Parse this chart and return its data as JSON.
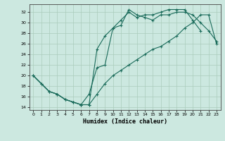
{
  "xlabel": "Humidex (Indice chaleur)",
  "xlim": [
    -0.5,
    23.5
  ],
  "ylim": [
    13.5,
    33.5
  ],
  "yticks": [
    14,
    16,
    18,
    20,
    22,
    24,
    26,
    28,
    30,
    32
  ],
  "xticks": [
    0,
    1,
    2,
    3,
    4,
    5,
    6,
    7,
    8,
    9,
    10,
    11,
    12,
    13,
    14,
    15,
    16,
    17,
    18,
    19,
    20,
    21,
    22,
    23
  ],
  "bg_color": "#cce8e0",
  "grid_color": "#aaccbb",
  "line_color": "#1a6b5a",
  "line1_x": [
    0,
    1,
    2,
    3,
    4,
    5,
    6,
    7,
    8,
    9,
    10,
    11,
    12,
    13,
    14,
    15,
    16,
    17,
    18,
    19,
    20,
    21
  ],
  "line1_y": [
    20,
    18.5,
    17,
    16.5,
    15.5,
    15,
    14.5,
    14.5,
    25,
    27.5,
    29,
    30.5,
    32,
    31.0,
    31.5,
    31.5,
    32,
    32.5,
    32.5,
    32.5,
    30.5,
    28.5
  ],
  "line2_x": [
    0,
    1,
    2,
    3,
    4,
    5,
    6,
    7,
    8,
    9,
    10,
    11,
    12,
    13,
    14,
    15,
    16,
    17,
    18,
    19,
    20,
    21,
    22,
    23
  ],
  "line2_y": [
    20,
    18.5,
    17,
    16.5,
    15.5,
    15,
    14.5,
    16.5,
    21.5,
    22,
    29,
    29.5,
    32.5,
    31.5,
    31.0,
    30.5,
    31.5,
    31.5,
    32,
    32,
    31.5,
    30,
    28.5,
    26.5
  ],
  "line3_x": [
    0,
    2,
    3,
    4,
    5,
    6,
    7,
    8,
    9,
    10,
    11,
    12,
    13,
    14,
    15,
    16,
    17,
    18,
    19,
    20,
    21,
    22,
    23
  ],
  "line3_y": [
    20,
    17,
    16.5,
    15.5,
    15,
    14.5,
    14.5,
    16.5,
    18.5,
    20,
    21,
    22,
    23,
    24,
    25,
    25.5,
    26.5,
    27.5,
    29,
    30,
    31.5,
    31.5,
    26
  ]
}
